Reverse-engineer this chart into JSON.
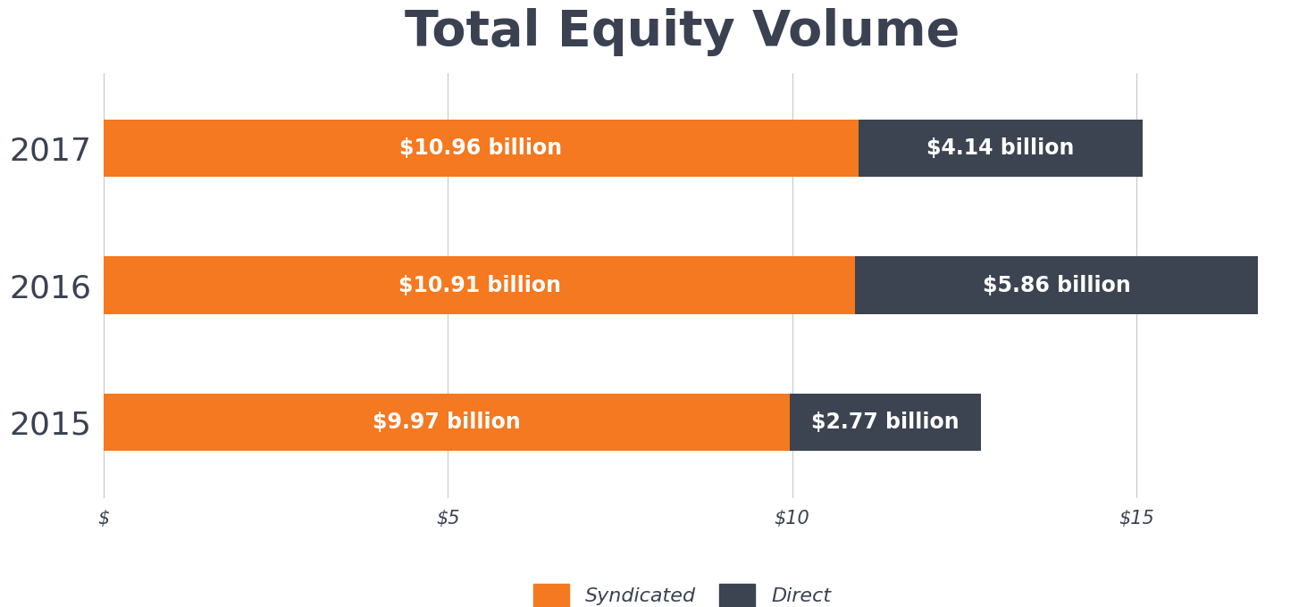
{
  "title": "Total Equity Volume",
  "title_fontsize": 40,
  "title_fontweight": "bold",
  "title_color": "#3a4252",
  "years": [
    "2017",
    "2016",
    "2015"
  ],
  "syndicated": [
    10.96,
    10.91,
    9.97
  ],
  "direct": [
    4.14,
    5.86,
    2.77
  ],
  "syndicated_labels": [
    "$10.96 billion",
    "$10.91 billion",
    "$9.97 billion"
  ],
  "direct_labels": [
    "$4.14 billion",
    "$5.86 billion",
    "$2.77 billion"
  ],
  "syndicated_color": "#f47920",
  "direct_color": "#3d4451",
  "bar_height": 0.42,
  "xlim": [
    0,
    16.8
  ],
  "xticks": [
    0,
    5,
    10,
    15
  ],
  "xticklabels": [
    "$",
    "$5",
    "$10",
    "$15"
  ],
  "ytick_fontsize": 26,
  "xtick_fontsize": 15,
  "legend_fontsize": 16,
  "bar_label_fontsize": 17,
  "background_color": "#ffffff",
  "grid_color": "#c8c8c8",
  "legend_label_syndicated": "Syndicated",
  "legend_label_direct": "Direct"
}
